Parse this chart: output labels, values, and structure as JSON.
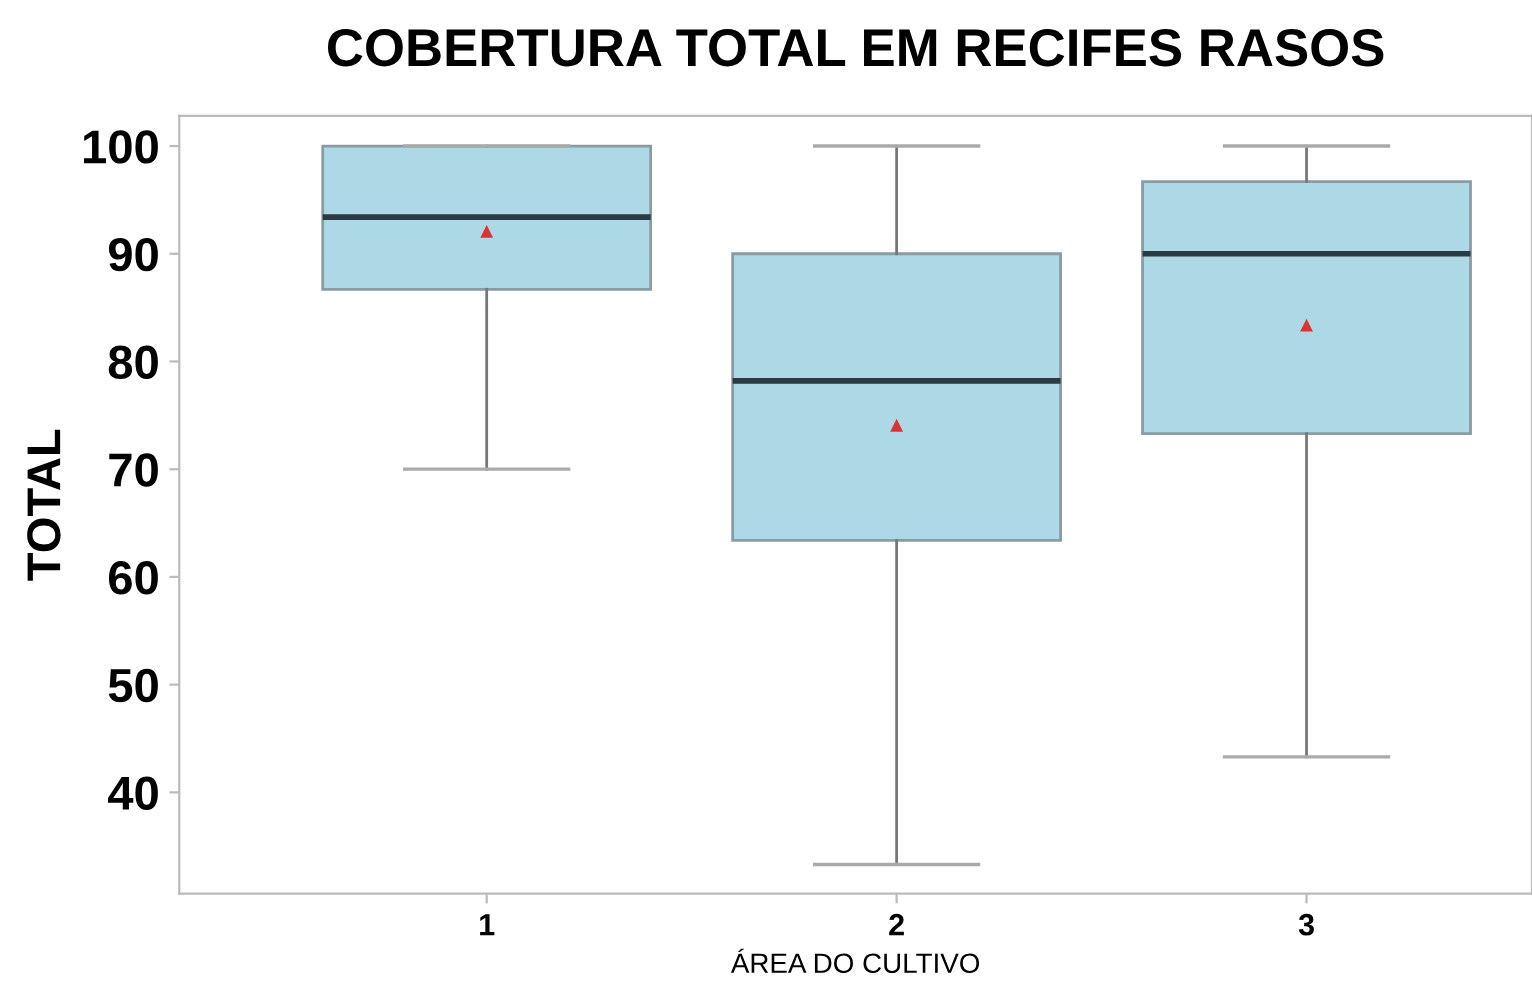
{
  "chart_data": {
    "type": "box",
    "title": "COBERTURA TOTAL EM RECIFES RASOS",
    "xlabel": "ÁREA DO CULTIVO",
    "ylabel": "TOTAL",
    "categories": [
      "1",
      "2",
      "3"
    ],
    "boxes": [
      {
        "low": 70,
        "q1": 86.7,
        "median": 93.4,
        "q3": 100,
        "high": 100,
        "mean": 92
      },
      {
        "low": 33.3,
        "q1": 63.4,
        "median": 78.2,
        "q3": 90,
        "high": 100,
        "mean": 74
      },
      {
        "low": 43.3,
        "q1": 73.3,
        "median": 90,
        "q3": 96.7,
        "high": 100,
        "mean": 83.3
      }
    ],
    "color": "#add8e6",
    "ylim": [
      30.6,
      102.8
    ],
    "yticks": [
      40,
      50,
      60,
      70,
      80,
      90,
      100
    ],
    "grid": false,
    "legend": false
  }
}
